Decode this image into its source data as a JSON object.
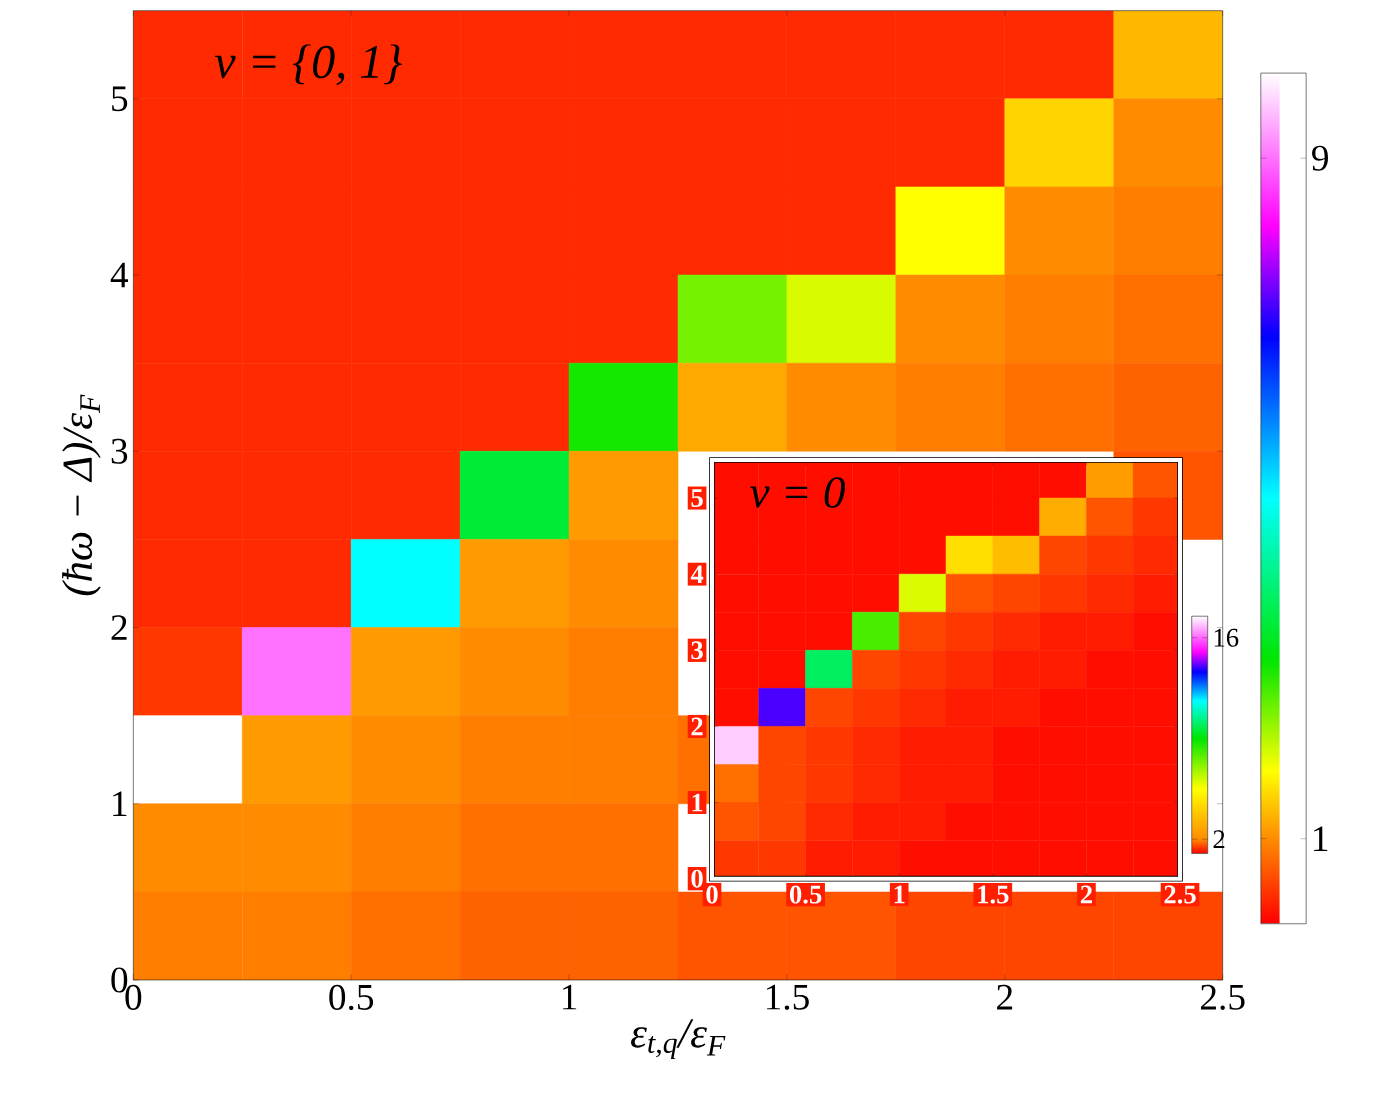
{
  "chart_data": [
    {
      "type": "heatmap",
      "xlabel": "ε$_{t,q}$/ε$_{F}$",
      "ylabel": "(ħω − Δ)/ε$_{F}$",
      "annotations": [
        "ν = {0, 1}"
      ],
      "xlim": [
        0,
        2.5
      ],
      "ylim": [
        0,
        5.5
      ],
      "xticks": [
        0,
        0.5,
        1,
        1.5,
        2,
        2.5
      ],
      "yticks": [
        0,
        1,
        2,
        3,
        4,
        5
      ],
      "clim": [
        0,
        10
      ],
      "cticks": [
        1,
        9
      ],
      "x": [
        0.125,
        0.375,
        0.625,
        0.875,
        1.125,
        1.375,
        1.625,
        1.875,
        2.125,
        2.375
      ],
      "y": [
        5.25,
        4.75,
        4.25,
        3.75,
        3.25,
        2.75,
        2.25,
        1.75,
        1.25,
        0.75,
        0.25
      ],
      "cells": [
        [
          0.3,
          0.3,
          0.3,
          0.3,
          0.3,
          0.3,
          0.3,
          0.3,
          0.3,
          1.3
        ],
        [
          0.3,
          0.3,
          0.3,
          0.3,
          0.3,
          0.3,
          0.3,
          0.3,
          1.5,
          1.0
        ],
        [
          0.3,
          0.3,
          0.3,
          0.3,
          0.3,
          0.3,
          0.3,
          1.8,
          1.0,
          0.9
        ],
        [
          0.3,
          0.3,
          0.3,
          0.3,
          0.3,
          2.5,
          2.0,
          1.0,
          0.9,
          0.8
        ],
        [
          0.3,
          0.3,
          0.3,
          0.3,
          3.0,
          1.2,
          1.0,
          0.9,
          0.8,
          0.7
        ],
        [
          0.3,
          0.3,
          0.3,
          3.5,
          1.1,
          null,
          null,
          null,
          null,
          0.6
        ],
        [
          0.3,
          0.3,
          5.0,
          1.1,
          1.0,
          null,
          null,
          null,
          null,
          null
        ],
        [
          0.4,
          9.0,
          1.1,
          1.0,
          0.9,
          null,
          null,
          null,
          null,
          null
        ],
        [
          10.0,
          1.1,
          1.0,
          0.9,
          0.9,
          0.8,
          null,
          null,
          null,
          null
        ],
        [
          1.0,
          1.0,
          0.9,
          0.8,
          0.8,
          null,
          null,
          null,
          null,
          null
        ],
        [
          0.9,
          0.9,
          0.8,
          0.7,
          0.7,
          0.6,
          0.6,
          0.5,
          0.5,
          0.5
        ]
      ]
    },
    {
      "type": "heatmap",
      "annotations": [
        "ν = 0"
      ],
      "xlim": [
        0,
        2.5
      ],
      "ylim": [
        0,
        5.5
      ],
      "xticks": [
        0,
        0.5,
        1,
        1.5,
        2,
        2.5
      ],
      "yticks": [
        0,
        1,
        2,
        3,
        4,
        5
      ],
      "clim": [
        1,
        17.5
      ],
      "cticks": [
        2,
        16
      ],
      "x": [
        0.125,
        0.375,
        0.625,
        0.875,
        1.125,
        1.375,
        1.625,
        1.875,
        2.125,
        2.375
      ],
      "y": [
        5.25,
        4.75,
        4.25,
        3.75,
        3.25,
        2.75,
        2.25,
        1.75,
        1.25,
        0.75,
        0.25
      ],
      "cells": [
        [
          1.1,
          1.1,
          1.1,
          1.1,
          1.1,
          1.1,
          1.1,
          1.1,
          2.5,
          1.6
        ],
        [
          1.1,
          1.1,
          1.1,
          1.1,
          1.1,
          1.1,
          1.1,
          3.0,
          1.6,
          1.4
        ],
        [
          1.1,
          1.1,
          1.1,
          1.1,
          1.1,
          4.5,
          3.5,
          1.5,
          1.4,
          1.3
        ],
        [
          1.1,
          1.1,
          1.1,
          1.1,
          6.0,
          1.6,
          1.5,
          1.4,
          1.3,
          1.2
        ],
        [
          1.1,
          1.1,
          1.1,
          8.0,
          1.5,
          1.4,
          1.3,
          1.2,
          1.2,
          1.1
        ],
        [
          1.1,
          1.1,
          10.0,
          1.5,
          1.4,
          1.3,
          1.2,
          1.2,
          1.1,
          1.1
        ],
        [
          1.1,
          14.0,
          1.5,
          1.4,
          1.3,
          1.2,
          1.2,
          1.1,
          1.1,
          1.1
        ],
        [
          17.0,
          1.5,
          1.4,
          1.3,
          1.2,
          1.2,
          1.1,
          1.1,
          1.1,
          1.1
        ],
        [
          1.8,
          1.5,
          1.4,
          1.3,
          1.2,
          1.2,
          1.1,
          1.1,
          1.1,
          1.1
        ],
        [
          1.6,
          1.5,
          1.3,
          1.2,
          1.2,
          1.1,
          1.1,
          1.1,
          1.1,
          1.1
        ],
        [
          1.4,
          1.4,
          1.2,
          1.2,
          1.1,
          1.1,
          1.1,
          1.1,
          1.1,
          1.1
        ]
      ]
    }
  ]
}
